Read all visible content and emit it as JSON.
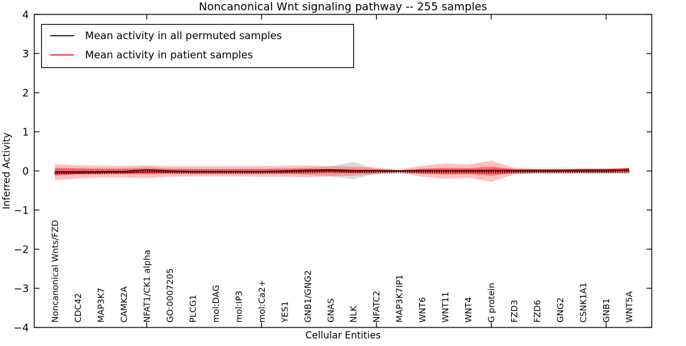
{
  "title": "Noncanonical Wnt signaling pathway -- 255 samples",
  "axes": {
    "xlabel": "Cellular Entities",
    "ylabel": "Inferred Activity"
  },
  "legend": {
    "items": [
      {
        "label": "Mean activity in all permuted samples",
        "color": "#000000"
      },
      {
        "label": "Mean activity in patient samples",
        "color": "#ff0000"
      }
    ]
  },
  "chart_data": {
    "type": "line",
    "title": "Noncanonical Wnt signaling pathway -- 255 samples",
    "xlabel": "Cellular Entities",
    "ylabel": "Inferred Activity",
    "ylim": [
      -4,
      4
    ],
    "yticks": [
      4,
      3,
      2,
      1,
      0,
      -1,
      -2,
      -3,
      -4
    ],
    "xticks_numeric": [
      5,
      10,
      15,
      20,
      25
    ],
    "grid": false,
    "legend_position": "upper left",
    "sample_count": 255,
    "categories": [
      "Noncanonical Wnts/FZD",
      "CDC42",
      "MAP3K7",
      "CAMK2A",
      "NFAT1/CK1 alpha",
      "GO:0007205",
      "PLCG1",
      "mol:DAG",
      "mol:IP3",
      "mol:Ca2+",
      "YES1",
      "GNB1/GNG2",
      "GNAS",
      "NLK",
      "NFATC2",
      "MAP3K7IP1",
      "WNT6",
      "WNT11",
      "WNT4",
      "G protein",
      "FZD3",
      "FZD6",
      "GNG2",
      "CSNK1A1",
      "GNB1",
      "WNT5A"
    ],
    "series": [
      {
        "name": "Mean activity in all permuted samples",
        "color": "#000000",
        "width": 1.2,
        "values": [
          -0.02,
          -0.02,
          -0.02,
          -0.01,
          0.03,
          0.0,
          -0.01,
          -0.01,
          -0.01,
          -0.01,
          0.0,
          0.02,
          0.03,
          0.01,
          0.0,
          0.0,
          0.0,
          0.0,
          0.0,
          0.0,
          0.0,
          0.0,
          0.0,
          0.0,
          0.0,
          0.02
        ]
      },
      {
        "name": "Mean activity in patient samples",
        "color": "#ff0000",
        "width": 2,
        "values": [
          -0.06,
          -0.05,
          -0.04,
          -0.03,
          -0.03,
          -0.02,
          -0.02,
          -0.02,
          -0.02,
          -0.02,
          -0.02,
          -0.01,
          0.0,
          -0.02,
          0.01,
          0.0,
          0.01,
          0.01,
          0.01,
          0.02,
          0.02,
          0.02,
          0.02,
          0.03,
          0.03,
          0.05
        ]
      }
    ],
    "bands": [
      {
        "name": "permuted-samples-range",
        "color": "#999999",
        "opacity": 0.35,
        "upper": [
          0.06,
          0.05,
          0.05,
          0.05,
          0.1,
          0.06,
          0.05,
          0.05,
          0.05,
          0.05,
          0.06,
          0.08,
          0.12,
          0.23,
          0.05,
          0.02,
          0.05,
          0.05,
          0.05,
          0.06,
          0.05,
          0.05,
          0.05,
          0.05,
          0.05,
          0.05
        ],
        "lower": [
          -0.07,
          -0.06,
          -0.06,
          -0.06,
          -0.08,
          -0.06,
          -0.06,
          -0.06,
          -0.06,
          -0.06,
          -0.07,
          -0.1,
          -0.14,
          -0.21,
          -0.06,
          -0.02,
          -0.06,
          -0.06,
          -0.06,
          -0.08,
          -0.06,
          -0.06,
          -0.06,
          -0.06,
          -0.06,
          -0.06
        ]
      },
      {
        "name": "patient-samples-outer",
        "color": "#ff0000",
        "opacity": 0.25,
        "upper": [
          0.17,
          0.14,
          0.13,
          0.13,
          0.14,
          0.12,
          0.12,
          0.12,
          0.12,
          0.12,
          0.13,
          0.14,
          0.12,
          0.11,
          0.08,
          0.03,
          0.13,
          0.19,
          0.16,
          0.26,
          0.08,
          0.05,
          0.05,
          0.05,
          0.05,
          0.07
        ],
        "lower": [
          -0.24,
          -0.19,
          -0.17,
          -0.17,
          -0.18,
          -0.15,
          -0.14,
          -0.14,
          -0.14,
          -0.15,
          -0.15,
          -0.16,
          -0.14,
          -0.12,
          -0.09,
          -0.04,
          -0.15,
          -0.2,
          -0.17,
          -0.28,
          -0.09,
          -0.06,
          -0.06,
          -0.06,
          -0.06,
          -0.07
        ],
        "legend": "Mean activity in patient samples"
      },
      {
        "name": "patient-samples-inner",
        "color": "#ff0000",
        "opacity": 0.4,
        "upper": [
          0.08,
          0.07,
          0.06,
          0.06,
          0.06,
          0.05,
          0.05,
          0.05,
          0.05,
          0.05,
          0.06,
          0.06,
          0.05,
          0.05,
          0.04,
          0.015,
          0.06,
          0.08,
          0.07,
          0.11,
          0.04,
          0.025,
          0.025,
          0.025,
          0.025,
          0.04
        ],
        "lower": [
          -0.12,
          -0.09,
          -0.08,
          -0.08,
          -0.08,
          -0.07,
          -0.07,
          -0.07,
          -0.07,
          -0.07,
          -0.07,
          -0.07,
          -0.06,
          -0.06,
          -0.04,
          -0.02,
          -0.07,
          -0.09,
          -0.08,
          -0.12,
          -0.05,
          -0.03,
          -0.03,
          -0.03,
          -0.03,
          -0.04
        ]
      }
    ]
  }
}
